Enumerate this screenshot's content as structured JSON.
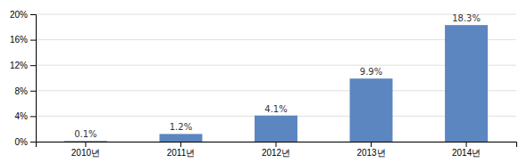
{
  "chart_data": {
    "type": "bar",
    "categories": [
      "2010년",
      "2011년",
      "2012년",
      "2013년",
      "2014년"
    ],
    "values": [
      0.1,
      1.2,
      4.1,
      9.9,
      18.3
    ],
    "value_labels": [
      "0.1%",
      "1.2%",
      "4.1%",
      "9.9%",
      "18.3%"
    ],
    "data_labels": true,
    "color": "#5B86C0",
    "ylim": [
      0,
      20
    ],
    "yticks": [
      {
        "value": 0,
        "label": "0%"
      },
      {
        "value": 4,
        "label": "4%"
      },
      {
        "value": 8,
        "label": "8%"
      },
      {
        "value": 12,
        "label": "12%"
      },
      {
        "value": 16,
        "label": "16%"
      },
      {
        "value": 20,
        "label": "20%"
      }
    ],
    "grid": true
  }
}
